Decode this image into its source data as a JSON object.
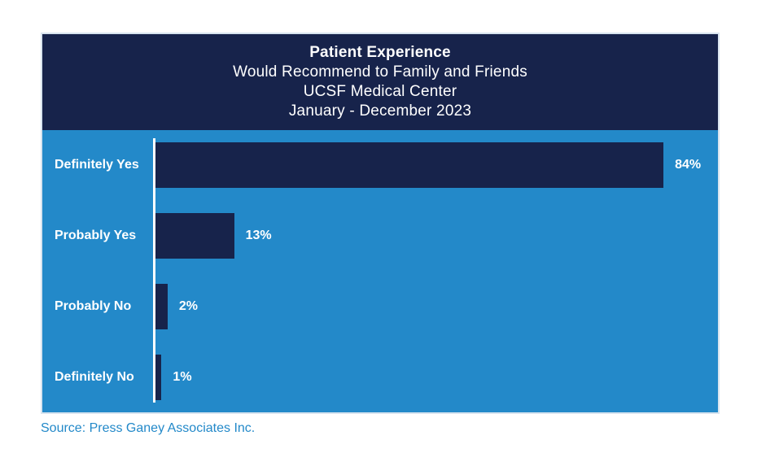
{
  "chart": {
    "title_lines": [
      "Patient Experience",
      "Would Recommend to Family and Friends",
      "UCSF Medical Center",
      "January - December 2023"
    ],
    "source": "Source: Press Ganey Associates Inc.",
    "colors": {
      "header_bg": "#17234B",
      "body_bg": "#2389C9",
      "bar": "#17234B",
      "axis_line": "#FFFFFF",
      "title_text": "#FFFFFF",
      "label_text": "#FFFFFF",
      "value_text": "#FFFFFF",
      "source_text": "#2389C9",
      "border": "#D8E4EF",
      "canvas_bg": "#FFFFFF"
    }
  },
  "chart_data": {
    "type": "bar",
    "orientation": "horizontal",
    "title": "Patient Experience",
    "subtitle_lines": [
      "Would Recommend to Family and Friends",
      "UCSF Medical Center",
      "January - December 2023"
    ],
    "categories": [
      "Definitely Yes",
      "Probably Yes",
      "Probably No",
      "Definitely No"
    ],
    "values": [
      84,
      13,
      2,
      1
    ],
    "value_labels": [
      "84%",
      "13%",
      "2%",
      "1%"
    ],
    "unit": "%",
    "xlim": [
      0,
      93
    ],
    "grid": false,
    "legend": false,
    "source": "Source: Press Ganey Associates Inc."
  }
}
